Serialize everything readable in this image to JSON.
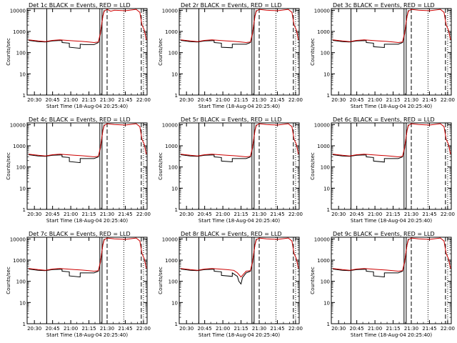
{
  "chart_data": [
    {
      "type": "line",
      "title": "Det 1c BLACK = Events, RED = LLD",
      "xlabel": "Start Time (18-Aug-04 20:25:40)",
      "ylabel": "Counts/sec",
      "scale_y": "log",
      "ylim": [
        1,
        12000
      ],
      "xlim": [
        20.4,
        22.05
      ],
      "x_ticks": [
        "20:30",
        "20:45",
        "21:00",
        "21:15",
        "21:30",
        "21:45",
        "22:00"
      ],
      "y_ticks": [
        "1",
        "10",
        "100",
        "1000",
        "10000"
      ],
      "series": [
        {
          "color": "#000000",
          "x": [
            20.42,
            20.55,
            20.65,
            20.75,
            20.83,
            20.88,
            20.88,
            20.98,
            20.98,
            21.13,
            21.13,
            21.18,
            21.32,
            21.38,
            21.41,
            21.44,
            21.46
          ],
          "y": [
            380,
            330,
            320,
            360,
            370,
            370,
            300,
            280,
            180,
            160,
            250,
            240,
            240,
            300,
            800,
            5000,
            10000
          ]
        },
        {
          "color": "#cc0000",
          "x": [
            20.42,
            20.55,
            20.65,
            20.75,
            20.85,
            20.95,
            21.05,
            21.15,
            21.25,
            21.32,
            21.38,
            21.41,
            21.44,
            21.46,
            21.5,
            21.55,
            21.6,
            21.75,
            21.9,
            21.95,
            21.98,
            22.01,
            22.04
          ],
          "y": [
            400,
            360,
            330,
            380,
            400,
            380,
            360,
            340,
            320,
            300,
            320,
            900,
            5000,
            9000,
            11000,
            9000,
            10000,
            9500,
            11000,
            8000,
            2000,
            1200,
            400
          ]
        }
      ]
    },
    {
      "type": "line",
      "title": "Det 2r BLACK = Events, RED = LLD",
      "xlabel": "Start Time (18-Aug-04 20:25:40)",
      "ylabel": "Counts/sec",
      "scale_y": "log",
      "ylim": [
        1,
        12000
      ],
      "xlim": [
        20.4,
        22.05
      ],
      "x_ticks": [
        "20:30",
        "20:45",
        "21:00",
        "21:15",
        "21:30",
        "21:45",
        "22:00"
      ],
      "y_ticks": [
        "1",
        "10",
        "100",
        "1000",
        "10000"
      ],
      "series": [
        {
          "color": "#000000",
          "x": [
            20.42,
            20.55,
            20.65,
            20.75,
            20.88,
            20.88,
            20.98,
            20.98,
            21.13,
            21.13,
            21.32,
            21.38,
            21.41,
            21.44,
            21.46
          ],
          "y": [
            380,
            330,
            320,
            360,
            370,
            300,
            280,
            180,
            170,
            250,
            250,
            300,
            800,
            5000,
            10000
          ]
        },
        {
          "color": "#cc0000",
          "x": [
            20.42,
            20.55,
            20.65,
            20.75,
            20.85,
            20.95,
            21.05,
            21.15,
            21.25,
            21.32,
            21.38,
            21.41,
            21.44,
            21.46,
            21.5,
            21.6,
            21.75,
            21.9,
            21.95,
            21.98,
            22.01,
            22.04
          ],
          "y": [
            400,
            360,
            330,
            380,
            400,
            380,
            360,
            340,
            320,
            300,
            320,
            900,
            5000,
            9000,
            11000,
            10000,
            9500,
            11000,
            8000,
            2000,
            1200,
            400
          ]
        }
      ]
    },
    {
      "type": "line",
      "title": "Det 3c BLACK = Events, RED = LLD",
      "xlabel": "Start Time (18-Aug-04 20:25:40)",
      "ylabel": "Counts/sec",
      "scale_y": "log",
      "ylim": [
        1,
        12000
      ],
      "xlim": [
        20.4,
        22.05
      ],
      "x_ticks": [
        "20:30",
        "20:45",
        "21:00",
        "21:15",
        "21:30",
        "21:45",
        "22:00"
      ],
      "y_ticks": [
        "1",
        "10",
        "100",
        "1000",
        "10000"
      ],
      "series": [
        {
          "color": "#000000",
          "x": [
            20.42,
            20.55,
            20.65,
            20.75,
            20.88,
            20.88,
            20.98,
            20.98,
            21.13,
            21.13,
            21.32,
            21.38,
            21.41,
            21.44,
            21.46
          ],
          "y": [
            380,
            330,
            320,
            360,
            370,
            300,
            280,
            190,
            175,
            250,
            250,
            300,
            800,
            5000,
            10000
          ]
        },
        {
          "color": "#cc0000",
          "x": [
            20.42,
            20.55,
            20.65,
            20.75,
            20.85,
            20.95,
            21.05,
            21.15,
            21.25,
            21.32,
            21.38,
            21.41,
            21.44,
            21.46,
            21.5,
            21.6,
            21.75,
            21.9,
            21.95,
            21.98,
            22.01,
            22.04
          ],
          "y": [
            400,
            360,
            330,
            380,
            400,
            380,
            360,
            340,
            320,
            300,
            320,
            900,
            5000,
            9000,
            11000,
            10000,
            9500,
            11000,
            8000,
            2000,
            1200,
            400
          ]
        }
      ]
    },
    {
      "type": "line",
      "title": "Det 4c BLACK = Events, RED = LLD",
      "xlabel": "Start Time (18-Aug-04 20:25:40)",
      "ylabel": "Counts/sec",
      "scale_y": "log",
      "ylim": [
        1,
        12000
      ],
      "xlim": [
        20.4,
        22.05
      ],
      "x_ticks": [
        "20:30",
        "20:45",
        "21:00",
        "21:15",
        "21:30",
        "21:45",
        "22:00"
      ],
      "y_ticks": [
        "1",
        "10",
        "100",
        "1000",
        "10000"
      ],
      "series": [
        {
          "color": "#000000",
          "x": [
            20.42,
            20.55,
            20.65,
            20.75,
            20.88,
            20.88,
            20.98,
            20.98,
            21.13,
            21.13,
            21.32,
            21.38,
            21.41,
            21.44,
            21.46
          ],
          "y": [
            380,
            330,
            320,
            360,
            370,
            300,
            280,
            180,
            160,
            250,
            250,
            300,
            800,
            5000,
            10000
          ]
        },
        {
          "color": "#cc0000",
          "x": [
            20.42,
            20.55,
            20.65,
            20.75,
            20.85,
            20.95,
            21.05,
            21.15,
            21.25,
            21.32,
            21.38,
            21.41,
            21.44,
            21.46,
            21.5,
            21.6,
            21.75,
            21.9,
            21.95,
            21.98,
            22.01,
            22.04
          ],
          "y": [
            400,
            360,
            330,
            380,
            400,
            380,
            360,
            340,
            320,
            300,
            320,
            900,
            5000,
            9000,
            11000,
            10000,
            9500,
            11000,
            8000,
            2000,
            1200,
            400
          ]
        }
      ]
    },
    {
      "type": "line",
      "title": "Det 5r BLACK = Events, RED = LLD",
      "xlabel": "Start Time (18-Aug-04 20:25:40)",
      "ylabel": "Counts/sec",
      "scale_y": "log",
      "ylim": [
        1,
        12000
      ],
      "xlim": [
        20.4,
        22.05
      ],
      "x_ticks": [
        "20:30",
        "20:45",
        "21:00",
        "21:15",
        "21:30",
        "21:45",
        "22:00"
      ],
      "y_ticks": [
        "1",
        "10",
        "100",
        "1000",
        "10000"
      ],
      "series": [
        {
          "color": "#000000",
          "x": [
            20.42,
            20.55,
            20.65,
            20.75,
            20.88,
            20.88,
            20.98,
            20.98,
            21.13,
            21.13,
            21.32,
            21.38,
            21.41,
            21.44,
            21.46
          ],
          "y": [
            380,
            330,
            320,
            360,
            370,
            300,
            280,
            190,
            175,
            250,
            250,
            300,
            800,
            5000,
            10000
          ]
        },
        {
          "color": "#cc0000",
          "x": [
            20.42,
            20.55,
            20.65,
            20.75,
            20.85,
            20.95,
            21.05,
            21.15,
            21.25,
            21.32,
            21.38,
            21.41,
            21.44,
            21.46,
            21.5,
            21.6,
            21.75,
            21.9,
            21.95,
            21.98,
            22.01,
            22.04
          ],
          "y": [
            400,
            360,
            330,
            380,
            400,
            380,
            360,
            340,
            320,
            300,
            320,
            900,
            5000,
            9000,
            11000,
            10000,
            9500,
            11000,
            8000,
            2000,
            1200,
            400
          ]
        }
      ]
    },
    {
      "type": "line",
      "title": "Det 6c BLACK = Events, RED = LLD",
      "xlabel": "Start Time (18-Aug-04 20:25:40)",
      "ylabel": "Counts/sec",
      "scale_y": "log",
      "ylim": [
        1,
        12000
      ],
      "xlim": [
        20.4,
        22.05
      ],
      "x_ticks": [
        "20:30",
        "20:45",
        "21:00",
        "21:15",
        "21:30",
        "21:45",
        "22:00"
      ],
      "y_ticks": [
        "1",
        "10",
        "100",
        "1000",
        "10000"
      ],
      "series": [
        {
          "color": "#000000",
          "x": [
            20.42,
            20.55,
            20.65,
            20.75,
            20.88,
            20.88,
            20.98,
            20.98,
            21.13,
            21.13,
            21.32,
            21.38,
            21.41,
            21.44,
            21.46
          ],
          "y": [
            380,
            330,
            320,
            360,
            370,
            300,
            280,
            190,
            170,
            250,
            250,
            300,
            800,
            5000,
            10000
          ]
        },
        {
          "color": "#cc0000",
          "x": [
            20.42,
            20.55,
            20.65,
            20.75,
            20.85,
            20.95,
            21.05,
            21.15,
            21.25,
            21.32,
            21.38,
            21.41,
            21.44,
            21.46,
            21.5,
            21.6,
            21.75,
            21.9,
            21.95,
            21.98,
            22.01,
            22.04
          ],
          "y": [
            400,
            360,
            330,
            380,
            400,
            380,
            360,
            340,
            320,
            300,
            320,
            900,
            5000,
            9000,
            11000,
            10000,
            9500,
            11000,
            8000,
            2000,
            1200,
            400
          ]
        }
      ]
    },
    {
      "type": "line",
      "title": "Det 7c BLACK = Events, RED = LLD",
      "xlabel": "Start Time (18-Aug-04 20:25:40)",
      "ylabel": "Counts/sec",
      "scale_y": "log",
      "ylim": [
        1,
        12000
      ],
      "xlim": [
        20.4,
        22.05
      ],
      "x_ticks": [
        "20:30",
        "20:45",
        "21:00",
        "21:15",
        "21:30",
        "21:45",
        "22:00"
      ],
      "y_ticks": [
        "1",
        "10",
        "100",
        "1000",
        "10000"
      ],
      "series": [
        {
          "color": "#000000",
          "x": [
            20.42,
            20.55,
            20.65,
            20.75,
            20.88,
            20.88,
            20.98,
            20.98,
            21.13,
            21.13,
            21.32,
            21.38,
            21.41,
            21.44,
            21.46
          ],
          "y": [
            380,
            330,
            320,
            360,
            370,
            300,
            280,
            180,
            160,
            250,
            250,
            300,
            800,
            5000,
            10000
          ]
        },
        {
          "color": "#cc0000",
          "x": [
            20.42,
            20.55,
            20.65,
            20.75,
            20.85,
            20.95,
            21.05,
            21.15,
            21.25,
            21.32,
            21.38,
            21.41,
            21.44,
            21.46,
            21.5,
            21.6,
            21.75,
            21.9,
            21.95,
            21.98,
            22.01,
            22.04
          ],
          "y": [
            400,
            360,
            330,
            380,
            400,
            380,
            360,
            340,
            320,
            300,
            320,
            900,
            5000,
            9000,
            11000,
            10000,
            9500,
            11000,
            8000,
            2000,
            1200,
            400
          ]
        }
      ]
    },
    {
      "type": "line",
      "title": "Det 8r BLACK = Events, RED = LLD",
      "xlabel": "Start Time (18-Aug-04 20:25:40)",
      "ylabel": "Counts/sec",
      "scale_y": "log",
      "ylim": [
        1,
        12000
      ],
      "xlim": [
        20.4,
        22.05
      ],
      "x_ticks": [
        "20:30",
        "20:45",
        "21:00",
        "21:15",
        "21:30",
        "21:45",
        "22:00"
      ],
      "y_ticks": [
        "1",
        "10",
        "100",
        "1000",
        "10000"
      ],
      "series": [
        {
          "color": "#000000",
          "x": [
            20.42,
            20.55,
            20.65,
            20.75,
            20.88,
            20.88,
            20.98,
            20.98,
            21.13,
            21.13,
            21.2,
            21.22,
            21.25,
            21.27,
            21.32,
            21.38,
            21.41,
            21.44,
            21.46
          ],
          "y": [
            380,
            330,
            320,
            360,
            370,
            300,
            280,
            190,
            170,
            250,
            170,
            100,
            75,
            150,
            250,
            300,
            800,
            5000,
            10000
          ]
        },
        {
          "color": "#cc0000",
          "x": [
            20.42,
            20.55,
            20.65,
            20.75,
            20.85,
            20.95,
            21.05,
            21.15,
            21.2,
            21.25,
            21.32,
            21.38,
            21.41,
            21.44,
            21.46,
            21.5,
            21.6,
            21.75,
            21.9,
            21.95,
            21.98,
            22.01,
            22.04
          ],
          "y": [
            400,
            360,
            330,
            380,
            400,
            380,
            360,
            330,
            250,
            160,
            300,
            320,
            900,
            5000,
            9000,
            11000,
            10000,
            9500,
            11000,
            8000,
            2000,
            1200,
            400
          ]
        }
      ]
    },
    {
      "type": "line",
      "title": "Det 9c BLACK = Events, RED = LLD",
      "xlabel": "Start Time (18-Aug-04 20:25:40)",
      "ylabel": "Counts/sec",
      "scale_y": "log",
      "ylim": [
        1,
        12000
      ],
      "xlim": [
        20.4,
        22.05
      ],
      "x_ticks": [
        "20:30",
        "20:45",
        "21:00",
        "21:15",
        "21:30",
        "21:45",
        "22:00"
      ],
      "y_ticks": [
        "1",
        "10",
        "100",
        "1000",
        "10000"
      ],
      "series": [
        {
          "color": "#000000",
          "x": [
            20.42,
            20.55,
            20.65,
            20.75,
            20.88,
            20.88,
            20.98,
            20.98,
            21.13,
            21.13,
            21.32,
            21.38,
            21.41,
            21.44,
            21.46
          ],
          "y": [
            380,
            330,
            320,
            360,
            370,
            300,
            280,
            180,
            160,
            250,
            250,
            300,
            800,
            5000,
            10000
          ]
        },
        {
          "color": "#cc0000",
          "x": [
            20.42,
            20.55,
            20.65,
            20.75,
            20.85,
            20.95,
            21.05,
            21.15,
            21.25,
            21.32,
            21.38,
            21.41,
            21.44,
            21.46,
            21.5,
            21.6,
            21.75,
            21.9,
            21.95,
            21.98,
            22.01,
            22.04
          ],
          "y": [
            400,
            360,
            330,
            380,
            400,
            380,
            360,
            340,
            320,
            300,
            320,
            900,
            5000,
            9000,
            11000,
            10000,
            9500,
            11000,
            8000,
            2000,
            1200,
            400
          ]
        }
      ]
    }
  ]
}
